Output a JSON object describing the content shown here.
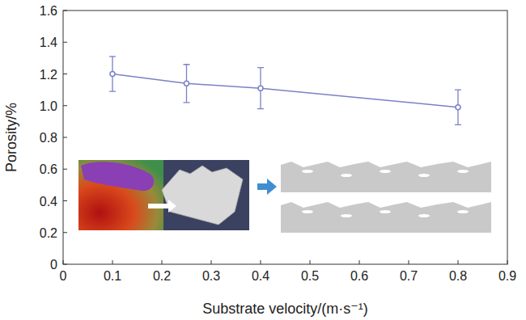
{
  "chart_data": {
    "type": "line",
    "x_label": "Substrate velocity/(m·s⁻¹)",
    "y_label": "Porosity/%",
    "x": [
      0.1,
      0.25,
      0.4,
      0.8
    ],
    "values": [
      1.2,
      1.14,
      1.11,
      0.99
    ],
    "errors": [
      0.11,
      0.12,
      0.13,
      0.11
    ],
    "color": "#7b80c8",
    "marker": "circle",
    "xlim": [
      0,
      0.9
    ],
    "xticks": [
      0,
      0.1,
      0.2,
      0.3,
      0.4,
      0.5,
      0.6,
      0.7,
      0.8,
      0.9
    ],
    "ylim": [
      0,
      1.6
    ],
    "yticks": [
      0,
      0.2,
      0.4,
      0.6,
      0.8,
      {
        "value": 1,
        "label": "1.0"
      },
      1.2,
      1.4,
      1.6
    ],
    "grid": false
  }
}
